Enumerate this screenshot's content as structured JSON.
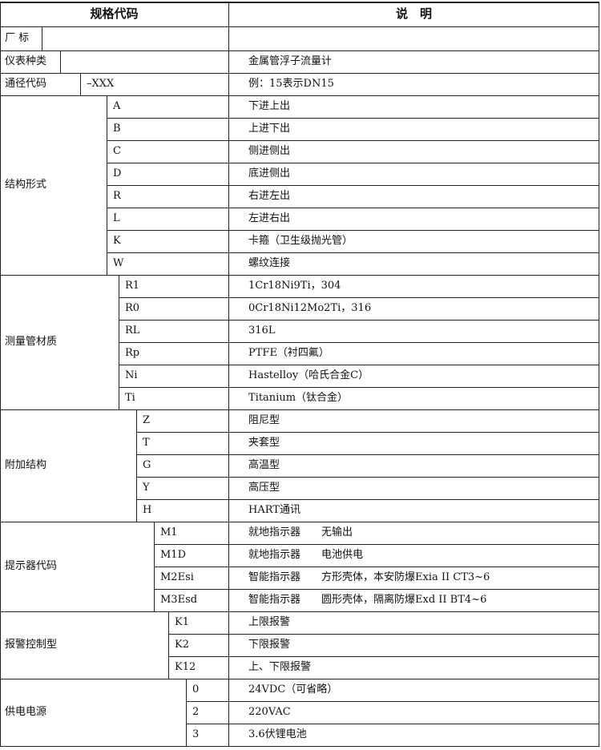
{
  "header": [
    "规格代码",
    "说　明"
  ],
  "top_rows": [
    {
      "label": "厂 标"
    },
    {
      "label": "仪表种类",
      "desc": "金属管浮子流量计"
    },
    {
      "label": "通径代码",
      "code": "–XXX",
      "desc": "例：15表示DN15"
    }
  ],
  "groups": [
    {
      "label": "结构形式",
      "items": [
        {
          "code": "A",
          "desc": "下进上出"
        },
        {
          "code": "B",
          "desc": "上进下出"
        },
        {
          "code": "C",
          "desc": "侧进侧出"
        },
        {
          "code": "D",
          "desc": "底进侧出"
        },
        {
          "code": "R",
          "desc": "右进左出"
        },
        {
          "code": "L",
          "desc": "左进右出"
        },
        {
          "code": "K",
          "desc": "卡箍（卫生级抛光管）"
        },
        {
          "code": "W",
          "desc": "螺纹连接"
        }
      ]
    },
    {
      "label": "测量管材质",
      "items": [
        {
          "code": "R1",
          "desc": "1Cr18Ni9Ti，304"
        },
        {
          "code": "R0",
          "desc": "0Cr18Ni12Mo2Ti，316"
        },
        {
          "code": "RL",
          "desc": "316L"
        },
        {
          "code": "Rp",
          "desc": "PTFE（衬四氟）"
        },
        {
          "code": "Ni",
          "desc": "Hastelloy（哈氏合金C）"
        },
        {
          "code": "Ti",
          "desc": "Titanium（钛合金）"
        }
      ]
    },
    {
      "label": "附加结构",
      "items": [
        {
          "code": "Z",
          "desc": "阻尼型"
        },
        {
          "code": "T",
          "desc": "夹套型"
        },
        {
          "code": "G",
          "desc": "高温型"
        },
        {
          "code": "Y",
          "desc": "高压型"
        },
        {
          "code": "H",
          "desc": "HART通讯"
        }
      ]
    },
    {
      "label": "提示器代码",
      "items": [
        {
          "code": "M1",
          "desc": "就地指示器　　无输出"
        },
        {
          "code": "M1D",
          "desc": "就地指示器　　电池供电"
        },
        {
          "code": "M2Esi",
          "desc": "智能指示器　　方形壳体，本安防爆Exia II CT3~6"
        },
        {
          "code": "M3Esd",
          "desc": "智能指示器　　圆形壳体，隔离防爆Exd II BT4~6"
        }
      ]
    },
    {
      "label": "报警控制型",
      "items": [
        {
          "code": "K1",
          "desc": "上限报警"
        },
        {
          "code": "K2",
          "desc": "下限报警"
        },
        {
          "code": "K12",
          "desc": "上、下限报警"
        }
      ]
    },
    {
      "label": "供电电源",
      "items": [
        {
          "code": "0",
          "desc": "24VDC（可省略）"
        },
        {
          "code": "2",
          "desc": "220VAC"
        },
        {
          "code": "3",
          "desc": "3.6伏锂电池"
        }
      ]
    }
  ]
}
